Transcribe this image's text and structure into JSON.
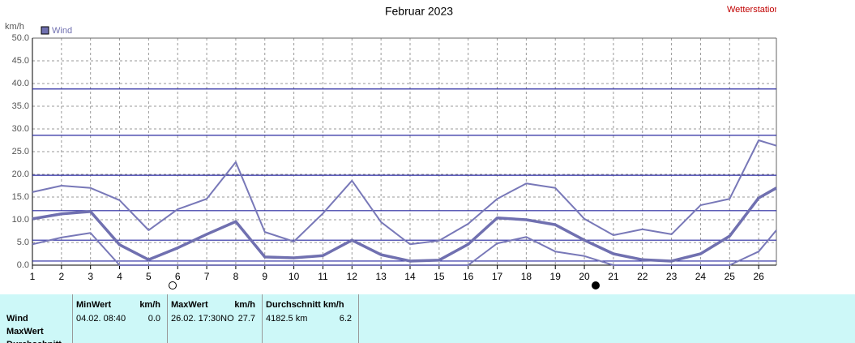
{
  "chart_data": {
    "type": "line",
    "title": "Februar 2023",
    "source": "Wetterstation",
    "y_label": "km/h",
    "legend": "Wind",
    "legend_color": "#7070b0",
    "x": [
      1,
      2,
      3,
      4,
      5,
      6,
      7,
      8,
      9,
      10,
      11,
      12,
      13,
      14,
      15,
      16,
      17,
      18,
      19,
      20,
      21,
      22,
      23,
      24,
      25,
      26,
      26.61
    ],
    "xlim": [
      1,
      26.61
    ],
    "xticks": [
      1,
      2,
      3,
      4,
      5,
      6,
      7,
      8,
      9,
      10,
      11,
      12,
      13,
      14,
      15,
      16,
      17,
      18,
      19,
      20,
      21,
      22,
      23,
      24,
      25,
      26
    ],
    "ylim": [
      0,
      50
    ],
    "yticks": [
      {
        "value": 0,
        "label": "0.0"
      },
      {
        "value": 5,
        "label": "5.0"
      },
      {
        "value": 10,
        "label": "10.0"
      },
      {
        "value": 15,
        "label": "15.0"
      },
      {
        "value": 20,
        "label": "20.0"
      },
      {
        "value": 25,
        "label": "25.0"
      },
      {
        "value": 30,
        "label": "30.0"
      },
      {
        "value": 35,
        "label": "35.0"
      },
      {
        "value": 40,
        "label": "40.0"
      },
      {
        "value": 45,
        "label": "45.0"
      },
      {
        "value": 50,
        "label": "50.0"
      }
    ],
    "grid": true,
    "reference_lines": {
      "color": "#2828a0",
      "values": [
        0.9,
        5.5,
        12.0,
        19.8,
        28.6,
        38.8
      ]
    },
    "series": [
      {
        "color": "#7878b8",
        "width": 2,
        "values": [
          16.1,
          17.5,
          17.0,
          14.3,
          7.7,
          12.3,
          14.6,
          22.7,
          7.3,
          5.2,
          11.4,
          18.6,
          9.5,
          4.6,
          5.4,
          9.1,
          14.6,
          18.0,
          17.0,
          10.2,
          6.6,
          7.9,
          6.8,
          13.2,
          14.6,
          27.5,
          26.3
        ]
      },
      {
        "color": "#7070b0",
        "width": 3.5,
        "values": [
          10.2,
          11.3,
          11.8,
          4.5,
          1.2,
          3.8,
          6.8,
          9.6,
          1.8,
          1.6,
          2.1,
          5.5,
          2.3,
          0.9,
          1.1,
          4.6,
          10.4,
          10.0,
          8.9,
          5.5,
          2.5,
          1.2,
          0.9,
          2.5,
          6.4,
          14.8,
          17.0
        ]
      },
      {
        "color": "#7878b8",
        "width": 2,
        "values": [
          4.6,
          6.1,
          7.1,
          0,
          0,
          0,
          0,
          0,
          0,
          0,
          0,
          0,
          0,
          0,
          0,
          0,
          4.8,
          6.2,
          3.0,
          2.0,
          0,
          0,
          0,
          0,
          0,
          3.0,
          7.7
        ]
      }
    ]
  },
  "table": {
    "row_labels": [
      "Wind",
      "MaxWert",
      "Durchschnitt"
    ],
    "columns": [
      {
        "header": "MinWert",
        "unit": "km/h",
        "cells": [
          "04.02.  08:40",
          "0.0"
        ]
      },
      {
        "header": "MaxWert",
        "unit": "km/h",
        "cells": [
          "26.02.  17:30NO",
          "27.7"
        ]
      },
      {
        "header": "Durchschnitt km/h",
        "cells": [
          "4182.5 km",
          "6.2"
        ]
      }
    ]
  }
}
